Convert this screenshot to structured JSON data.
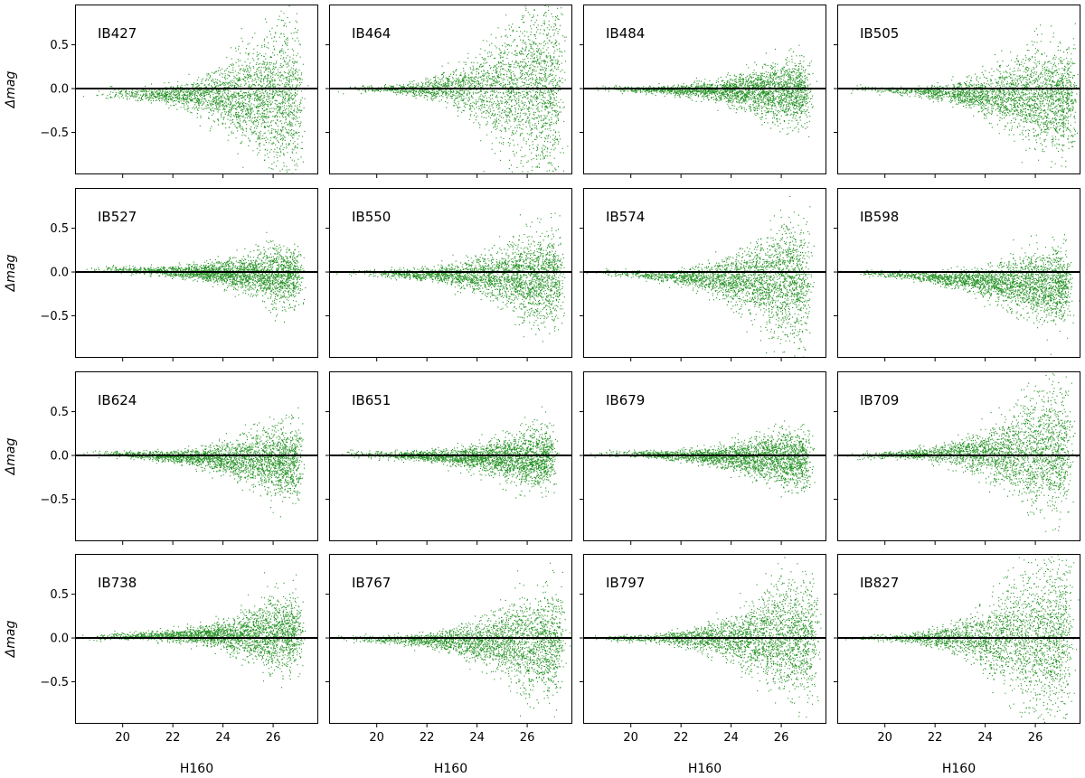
{
  "chart_data": {
    "type": "scatter",
    "layout": {
      "rows": 4,
      "cols": 4
    },
    "xlabel": "H160",
    "ylabel": "Δmag",
    "xlim": [
      18.1,
      27.8
    ],
    "ylim": [
      -0.98,
      0.96
    ],
    "xticks": [
      20,
      22,
      24,
      26
    ],
    "yticks": [
      0.5,
      0.0,
      -0.5
    ],
    "ytick_labels": [
      "0.5",
      "0.0",
      "−0.5"
    ],
    "reference_line": {
      "y": 0.0,
      "color": "#000000"
    },
    "marker_color": "#008000",
    "panels": [
      {
        "label": "IB427",
        "n_points": 2600,
        "x_range": [
          18.5,
          27.0
        ],
        "bias_bright": -0.05,
        "bias_faint": -0.1,
        "scatter_bright": 0.03,
        "scatter_faint": 0.4
      },
      {
        "label": "IB464",
        "n_points": 2600,
        "x_range": [
          18.2,
          27.3
        ],
        "bias_bright": 0.0,
        "bias_faint": 0.0,
        "scatter_bright": 0.02,
        "scatter_faint": 0.48
      },
      {
        "label": "IB484",
        "n_points": 2600,
        "x_range": [
          18.2,
          27.0
        ],
        "bias_bright": 0.0,
        "bias_faint": -0.03,
        "scatter_bright": 0.02,
        "scatter_faint": 0.18
      },
      {
        "label": "IB505",
        "n_points": 2600,
        "x_range": [
          18.2,
          27.5
        ],
        "bias_bright": 0.0,
        "bias_faint": -0.1,
        "scatter_bright": 0.02,
        "scatter_faint": 0.28
      },
      {
        "label": "IB527",
        "n_points": 2600,
        "x_range": [
          18.2,
          27.0
        ],
        "bias_bright": 0.04,
        "bias_faint": -0.03,
        "scatter_bright": 0.02,
        "scatter_faint": 0.16
      },
      {
        "label": "IB550",
        "n_points": 2600,
        "x_range": [
          18.2,
          27.3
        ],
        "bias_bright": 0.0,
        "bias_faint": -0.06,
        "scatter_bright": 0.02,
        "scatter_faint": 0.24
      },
      {
        "label": "IB574",
        "n_points": 2600,
        "x_range": [
          18.2,
          27.0
        ],
        "bias_bright": 0.0,
        "bias_faint": -0.12,
        "scatter_bright": 0.02,
        "scatter_faint": 0.32
      },
      {
        "label": "IB598",
        "n_points": 2600,
        "x_range": [
          18.2,
          27.3
        ],
        "bias_bright": 0.0,
        "bias_faint": -0.15,
        "scatter_bright": 0.02,
        "scatter_faint": 0.2
      },
      {
        "label": "IB624",
        "n_points": 2600,
        "x_range": [
          18.2,
          27.0
        ],
        "bias_bright": 0.03,
        "bias_faint": -0.06,
        "scatter_bright": 0.02,
        "scatter_faint": 0.2
      },
      {
        "label": "IB651",
        "n_points": 2600,
        "x_range": [
          18.2,
          27.0
        ],
        "bias_bright": 0.02,
        "bias_faint": -0.03,
        "scatter_bright": 0.02,
        "scatter_faint": 0.16
      },
      {
        "label": "IB679",
        "n_points": 2600,
        "x_range": [
          18.2,
          27.0
        ],
        "bias_bright": 0.03,
        "bias_faint": -0.03,
        "scatter_bright": 0.02,
        "scatter_faint": 0.16
      },
      {
        "label": "IB709",
        "n_points": 2600,
        "x_range": [
          18.2,
          27.3
        ],
        "bias_bright": 0.0,
        "bias_faint": 0.05,
        "scatter_bright": 0.02,
        "scatter_faint": 0.33
      },
      {
        "label": "IB738",
        "n_points": 2600,
        "x_range": [
          18.2,
          27.0
        ],
        "bias_bright": 0.02,
        "bias_faint": 0.05,
        "scatter_bright": 0.02,
        "scatter_faint": 0.2
      },
      {
        "label": "IB767",
        "n_points": 2600,
        "x_range": [
          18.2,
          27.3
        ],
        "bias_bright": 0.0,
        "bias_faint": -0.05,
        "scatter_bright": 0.02,
        "scatter_faint": 0.28
      },
      {
        "label": "IB797",
        "n_points": 2600,
        "x_range": [
          18.2,
          27.3
        ],
        "bias_bright": 0.0,
        "bias_faint": 0.0,
        "scatter_bright": 0.02,
        "scatter_faint": 0.32
      },
      {
        "label": "IB827",
        "n_points": 2600,
        "x_range": [
          18.2,
          27.3
        ],
        "bias_bright": 0.0,
        "bias_faint": 0.0,
        "scatter_bright": 0.02,
        "scatter_faint": 0.45
      }
    ]
  }
}
